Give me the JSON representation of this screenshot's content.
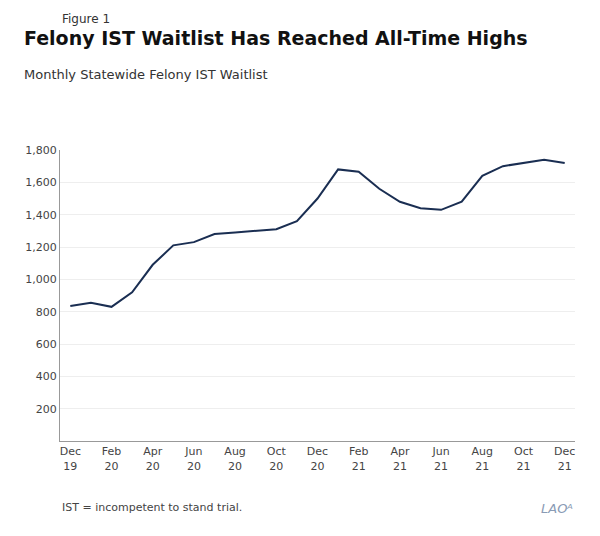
{
  "chart_data": {
    "type": "line",
    "title": "Felony IST Waitlist Has Reached All-Time Highs",
    "subtitle": "Monthly Statewide Felony IST Waitlist",
    "annotations": [
      "Figure 1",
      "IST = incompetent to stand trial.",
      "LAOᴬ"
    ],
    "categories": [
      "Dec\n19",
      null,
      "Feb\n20",
      null,
      "Apr\n20",
      null,
      "Jun\n20",
      null,
      "Aug\n20",
      null,
      "Oct\n20",
      null,
      "Dec\n20",
      null,
      "Feb\n21",
      null,
      "Apr\n21",
      null,
      "Jun\n21",
      null,
      "Aug\n21",
      null,
      "Oct\n21",
      null,
      "Dec\n21"
    ],
    "values": [
      835,
      855,
      830,
      920,
      1090,
      1210,
      1230,
      1280,
      1290,
      1300,
      1310,
      1360,
      1500,
      1680,
      1665,
      1560,
      1480,
      1440,
      1430,
      1480,
      1640,
      1700,
      1720,
      1740,
      1720
    ],
    "color": "#1a2e52",
    "ylim": [
      0,
      1800
    ],
    "yticks": [
      200,
      400,
      600,
      800,
      {
        "value": 1000,
        "label": "1,000"
      },
      {
        "value": 1200,
        "label": "1,200"
      },
      {
        "value": 1400,
        "label": "1,400"
      },
      {
        "value": 1600,
        "label": "1,600"
      },
      {
        "value": 1800,
        "label": "1,800"
      }
    ],
    "grid": true
  }
}
